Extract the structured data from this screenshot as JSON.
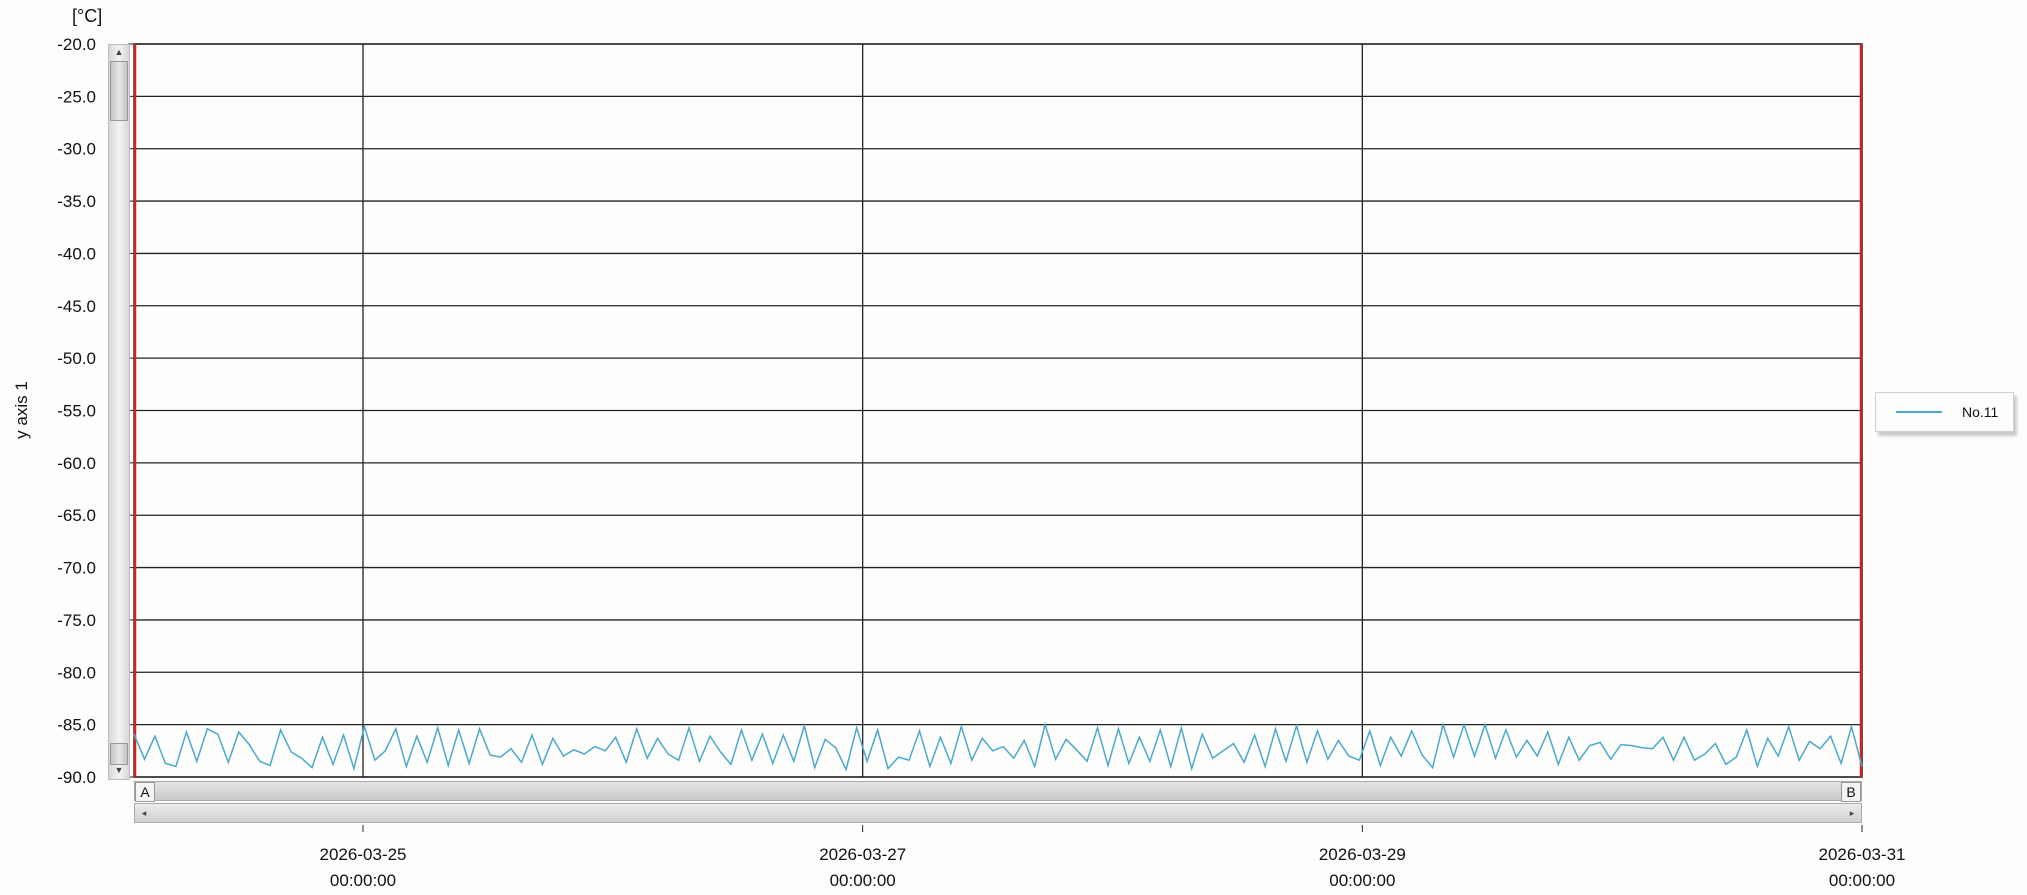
{
  "chart_data": {
    "type": "line",
    "ylabel": "y axis 1",
    "unit": "[°C]",
    "ylim": [
      -90.0,
      -20.0
    ],
    "y_ticks": [
      "-20.0",
      "-25.0",
      "-30.0",
      "-35.0",
      "-40.0",
      "-45.0",
      "-50.0",
      "-55.0",
      "-60.0",
      "-65.0",
      "-70.0",
      "-75.0",
      "-80.0",
      "-85.0",
      "-90.0"
    ],
    "xlim": [
      "2026-03-24T02:00:00",
      "2026-03-31T00:00:00"
    ],
    "x_ticks": [
      {
        "date": "2026-03-25",
        "time": "00:00:00"
      },
      {
        "date": "2026-03-27",
        "time": "00:00:00"
      },
      {
        "date": "2026-03-29",
        "time": "00:00:00"
      },
      {
        "date": "2026-03-31",
        "time": "00:00:00"
      }
    ],
    "grid": true,
    "legend_position": "right",
    "series": [
      {
        "name": "No.11",
        "color": "#4aa9cf",
        "x_start": "2026-03-24T02:00:00",
        "x_end": "2026-03-31T00:00:00",
        "values": [
          -85.9,
          -88.3,
          -86.1,
          -88.7,
          -89.0,
          -85.7,
          -88.5,
          -85.4,
          -85.9,
          -88.6,
          -85.7,
          -86.9,
          -88.5,
          -88.9,
          -85.5,
          -87.6,
          -88.2,
          -89.1,
          -86.2,
          -88.8,
          -86.0,
          -89.2,
          -85.2,
          -88.4,
          -87.5,
          -85.4,
          -89.0,
          -86.1,
          -88.6,
          -85.3,
          -88.9,
          -85.5,
          -88.7,
          -85.4,
          -87.9,
          -88.1,
          -87.3,
          -88.6,
          -86.0,
          -88.8,
          -86.3,
          -88.0,
          -87.4,
          -87.8,
          -87.1,
          -87.5,
          -86.2,
          -88.6,
          -85.4,
          -88.2,
          -86.3,
          -87.8,
          -88.4,
          -85.3,
          -88.5,
          -86.1,
          -87.6,
          -88.8,
          -85.5,
          -88.4,
          -85.9,
          -88.7,
          -86.0,
          -88.5,
          -85.1,
          -89.1,
          -86.4,
          -87.2,
          -89.3,
          -85.3,
          -88.5,
          -85.5,
          -89.2,
          -88.1,
          -88.4,
          -85.6,
          -89.0,
          -86.2,
          -88.7,
          -85.2,
          -88.4,
          -86.3,
          -87.5,
          -87.1,
          -88.2,
          -86.5,
          -89.0,
          -85.0,
          -88.3,
          -86.4,
          -87.4,
          -88.5,
          -85.3,
          -88.9,
          -85.4,
          -88.7,
          -86.2,
          -88.5,
          -85.5,
          -89.0,
          -85.3,
          -89.2,
          -85.9,
          -88.2,
          -87.5,
          -86.8,
          -88.6,
          -86.0,
          -89.0,
          -85.4,
          -88.5,
          -85.1,
          -88.6,
          -85.6,
          -88.3,
          -86.5,
          -88.0,
          -88.4,
          -85.6,
          -88.9,
          -86.2,
          -88.0,
          -85.6,
          -87.9,
          -89.1,
          -85.0,
          -88.1,
          -85.0,
          -88.0,
          -85.0,
          -88.2,
          -85.5,
          -88.1,
          -86.5,
          -88.0,
          -85.7,
          -88.8,
          -86.2,
          -88.4,
          -87.0,
          -86.7,
          -88.3,
          -86.9,
          -87.0,
          -87.2,
          -87.3,
          -86.2,
          -88.4,
          -86.2,
          -88.4,
          -87.8,
          -86.8,
          -88.8,
          -88.1,
          -85.5,
          -89.0,
          -86.3,
          -88.0,
          -85.2,
          -88.4,
          -86.6,
          -87.3,
          -86.1,
          -88.7,
          -85.2,
          -89.0
        ]
      }
    ]
  }
}
